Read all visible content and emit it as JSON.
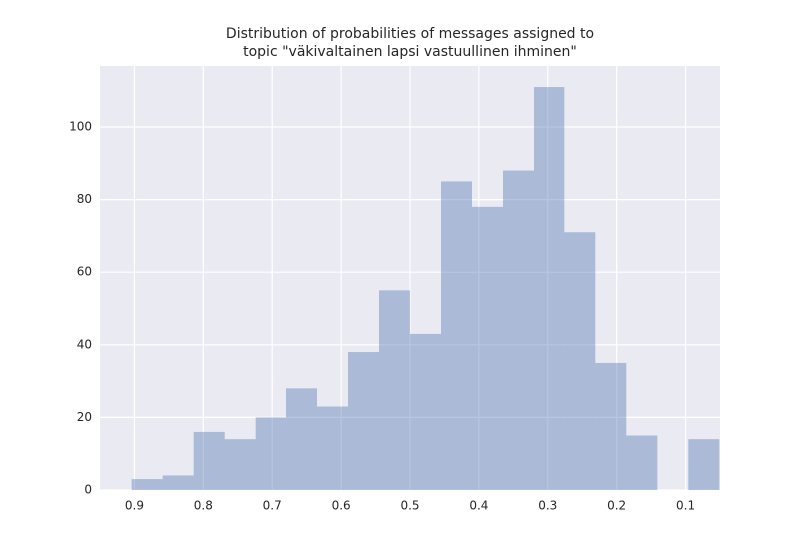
{
  "chart_data": {
    "type": "histogram",
    "title": [
      "Distribution of probabilities of messages assigned to",
      "topic \"väkivaltainen lapsi vastuullinen ihminen\""
    ],
    "bins": [
      0.051,
      0.096,
      0.141,
      0.186,
      0.231,
      0.276,
      0.32,
      0.365,
      0.41,
      0.455,
      0.5,
      0.545,
      0.59,
      0.635,
      0.68,
      0.724,
      0.769,
      0.814,
      0.859,
      0.904
    ],
    "counts": [
      14,
      0,
      15,
      35,
      71,
      111,
      88,
      78,
      85,
      43,
      55,
      38,
      23,
      28,
      20,
      14,
      16,
      4,
      3
    ],
    "color": "#4c72b0",
    "opacity": 0.4,
    "xlim": [
      0.95,
      0.05
    ],
    "xticks": [
      0.9,
      0.8,
      0.7,
      0.6,
      0.5,
      0.4,
      0.3,
      0.2,
      0.1
    ],
    "ylim": [
      0,
      116.8
    ],
    "yticks": [
      0,
      20,
      40,
      60,
      80,
      100
    ],
    "grid": true
  }
}
